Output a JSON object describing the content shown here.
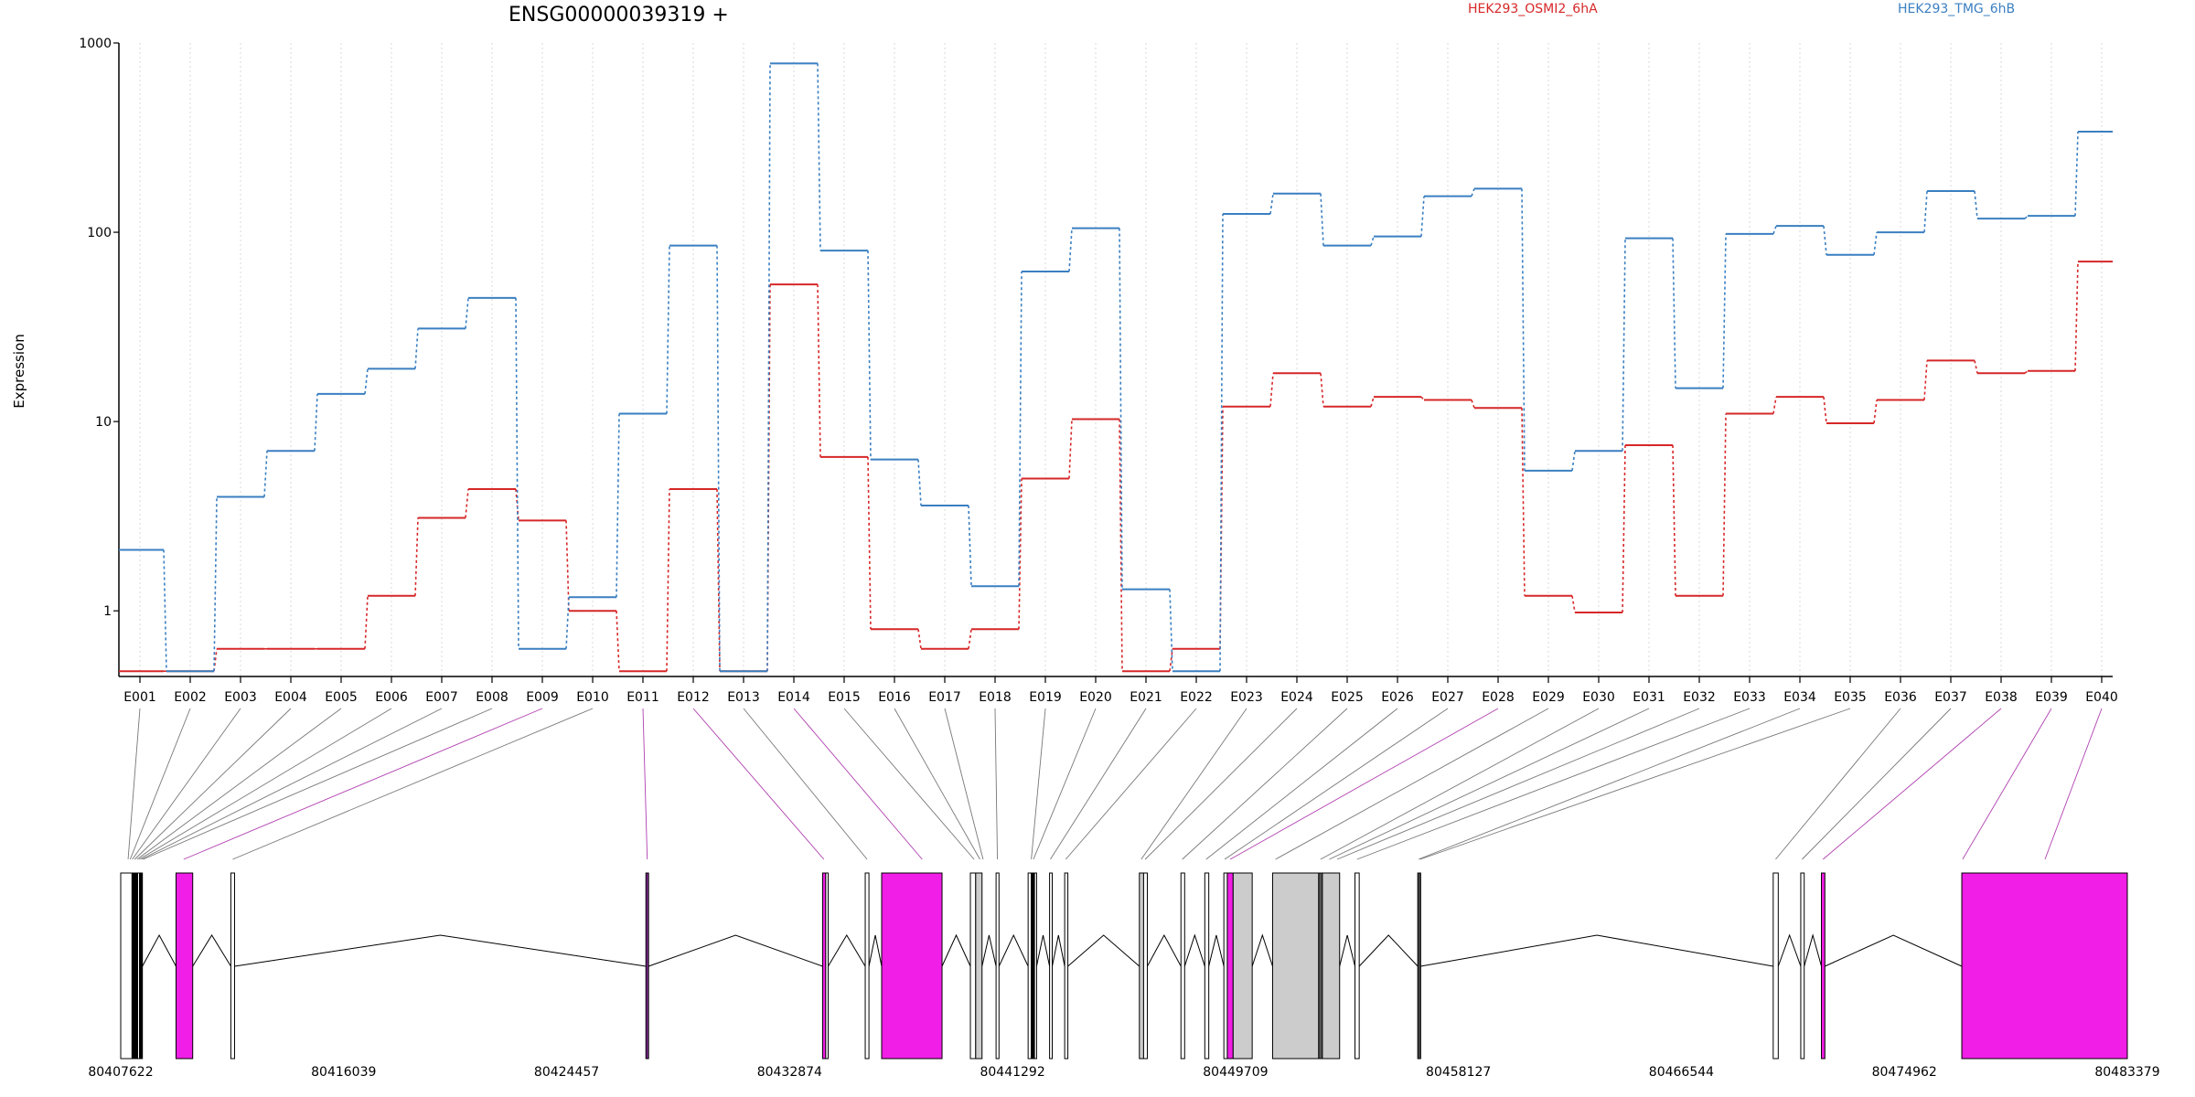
{
  "chart_data": {
    "type": "line",
    "title": "ENSG00000039319 +",
    "xlabel": "",
    "ylabel": "Expression",
    "y_scale": "log",
    "ylim": [
      0.45,
      1000
    ],
    "y_ticks": [
      1,
      10,
      100,
      1000
    ],
    "grid": "vertical dotted",
    "categories": [
      "E001",
      "E002",
      "E003",
      "E004",
      "E005",
      "E006",
      "E007",
      "E008",
      "E009",
      "E010",
      "E011",
      "E012",
      "E013",
      "E014",
      "E015",
      "E016",
      "E017",
      "E018",
      "E019",
      "E020",
      "E021",
      "E022",
      "E023",
      "E024",
      "E025",
      "E026",
      "E027",
      "E028",
      "E029",
      "E030",
      "E031",
      "E032",
      "E033",
      "E034",
      "E035",
      "E036",
      "E037",
      "E038",
      "E039",
      "E040"
    ],
    "series": [
      {
        "name": "HEK293_OSMI2_6hA",
        "color": "#d62728",
        "values": [
          0.48,
          0.48,
          0.63,
          0.63,
          0.63,
          1.2,
          3.1,
          4.4,
          3.0,
          1.0,
          0.48,
          4.4,
          0.48,
          53,
          6.5,
          0.8,
          0.63,
          0.8,
          5.0,
          10.3,
          0.48,
          0.63,
          12,
          18,
          12,
          13.5,
          13,
          11.8,
          1.2,
          0.98,
          7.5,
          1.2,
          11,
          13.5,
          9.8,
          13,
          21,
          18,
          18.5,
          70
        ]
      },
      {
        "name": "HEK293_TMG_6hB",
        "color": "#3a7fc1",
        "values": [
          2.1,
          0.48,
          4.0,
          7.0,
          14,
          19,
          31,
          45,
          0.63,
          1.18,
          11,
          85,
          0.48,
          780,
          80,
          6.3,
          3.6,
          1.35,
          62,
          105,
          1.3,
          0.48,
          125,
          160,
          85,
          95,
          155,
          170,
          5.5,
          7.0,
          93,
          15,
          98,
          108,
          76,
          100,
          165,
          118,
          122,
          340
        ]
      }
    ],
    "genomic_ticks": [
      "80407622",
      "80416039",
      "80424457",
      "80432874",
      "80441292",
      "80449709",
      "80458127",
      "80466544",
      "80474962",
      "80483379"
    ],
    "genomic_range": [
      80407622,
      80483379
    ],
    "exon_positions": [
      {
        "start": 80407622,
        "end": 80408050,
        "color": "#ffffff"
      },
      {
        "start": 80408050,
        "end": 80408260,
        "color": "#000000"
      },
      {
        "start": 80408260,
        "end": 80408330,
        "color": "#ffffff"
      },
      {
        "start": 80408330,
        "end": 80408440,
        "color": "#000000"
      },
      {
        "start": 80409710,
        "end": 80410340,
        "color": "#f01ee6"
      },
      {
        "start": 80411780,
        "end": 80411920,
        "color": "#ffffff"
      },
      {
        "start": 80427450,
        "end": 80427550,
        "color": "#7a2a8a"
      },
      {
        "start": 80434120,
        "end": 80434240,
        "color": "#f01ee6"
      },
      {
        "start": 80434240,
        "end": 80434330,
        "color": "#ffffff"
      },
      {
        "start": 80435730,
        "end": 80435870,
        "color": "#ffffff"
      },
      {
        "start": 80436350,
        "end": 80438630,
        "color": "#f01ee6"
      },
      {
        "start": 80439700,
        "end": 80439900,
        "color": "#ffffff"
      },
      {
        "start": 80439900,
        "end": 80440140,
        "color": "#cccccc"
      },
      {
        "start": 80440670,
        "end": 80440780,
        "color": "#ffffff"
      },
      {
        "start": 80441880,
        "end": 80442000,
        "color": "#ffffff"
      },
      {
        "start": 80442000,
        "end": 80442120,
        "color": "#000000"
      },
      {
        "start": 80442120,
        "end": 80442200,
        "color": "#ffffff"
      },
      {
        "start": 80442690,
        "end": 80442790,
        "color": "#ffffff"
      },
      {
        "start": 80443260,
        "end": 80443380,
        "color": "#ffffff"
      },
      {
        "start": 80446080,
        "end": 80446240,
        "color": "#cccccc"
      },
      {
        "start": 80446240,
        "end": 80446380,
        "color": "#ffffff"
      },
      {
        "start": 80447650,
        "end": 80447790,
        "color": "#ffffff"
      },
      {
        "start": 80448550,
        "end": 80448700,
        "color": "#ffffff"
      },
      {
        "start": 80449270,
        "end": 80449400,
        "color": "#ffffff"
      },
      {
        "start": 80449400,
        "end": 80449620,
        "color": "#f01ee6"
      },
      {
        "start": 80449620,
        "end": 80450340,
        "color": "#cccccc"
      },
      {
        "start": 80451110,
        "end": 80452850,
        "color": "#cccccc"
      },
      {
        "start": 80452850,
        "end": 80452990,
        "color": "#555555"
      },
      {
        "start": 80452990,
        "end": 80453640,
        "color": "#cccccc"
      },
      {
        "start": 80454220,
        "end": 80454380,
        "color": "#ffffff"
      },
      {
        "start": 80456590,
        "end": 80456700,
        "color": "#444444"
      },
      {
        "start": 80470010,
        "end": 80470200,
        "color": "#ffffff"
      },
      {
        "start": 80471050,
        "end": 80471180,
        "color": "#ffffff"
      },
      {
        "start": 80471830,
        "end": 80471960,
        "color": "#f01ee6"
      },
      {
        "start": 80477130,
        "end": 80483379,
        "color": "#f01ee6"
      }
    ],
    "exon_links": [
      {
        "exon": "E001",
        "pos": 80407900,
        "color": "#777777"
      },
      {
        "exon": "E002",
        "pos": 80407980,
        "color": "#777777"
      },
      {
        "exon": "E003",
        "pos": 80408060,
        "color": "#777777"
      },
      {
        "exon": "E004",
        "pos": 80408150,
        "color": "#777777"
      },
      {
        "exon": "E005",
        "pos": 80408240,
        "color": "#777777"
      },
      {
        "exon": "E006",
        "pos": 80408320,
        "color": "#777777"
      },
      {
        "exon": "E007",
        "pos": 80408400,
        "color": "#777777"
      },
      {
        "exon": "E008",
        "pos": 80408470,
        "color": "#777777"
      },
      {
        "exon": "E009",
        "pos": 80410000,
        "color": "#b040b0"
      },
      {
        "exon": "E010",
        "pos": 80411850,
        "color": "#777777"
      },
      {
        "exon": "E011",
        "pos": 80427500,
        "color": "#b040b0"
      },
      {
        "exon": "E012",
        "pos": 80434170,
        "color": "#b040b0"
      },
      {
        "exon": "E013",
        "pos": 80435800,
        "color": "#777777"
      },
      {
        "exon": "E014",
        "pos": 80437880,
        "color": "#b040b0"
      },
      {
        "exon": "E015",
        "pos": 80439840,
        "color": "#777777"
      },
      {
        "exon": "E016",
        "pos": 80440060,
        "color": "#777777"
      },
      {
        "exon": "E017",
        "pos": 80440180,
        "color": "#777777"
      },
      {
        "exon": "E018",
        "pos": 80440720,
        "color": "#777777"
      },
      {
        "exon": "E019",
        "pos": 80442000,
        "color": "#777777"
      },
      {
        "exon": "E020",
        "pos": 80442080,
        "color": "#777777"
      },
      {
        "exon": "E021",
        "pos": 80442720,
        "color": "#777777"
      },
      {
        "exon": "E022",
        "pos": 80443300,
        "color": "#777777"
      },
      {
        "exon": "E023",
        "pos": 80446150,
        "color": "#777777"
      },
      {
        "exon": "E024",
        "pos": 80446300,
        "color": "#777777"
      },
      {
        "exon": "E025",
        "pos": 80447700,
        "color": "#777777"
      },
      {
        "exon": "E026",
        "pos": 80448600,
        "color": "#777777"
      },
      {
        "exon": "E027",
        "pos": 80449300,
        "color": "#777777"
      },
      {
        "exon": "E028",
        "pos": 80449510,
        "color": "#b040b0"
      },
      {
        "exon": "E029",
        "pos": 80451220,
        "color": "#777777"
      },
      {
        "exon": "E030",
        "pos": 80452920,
        "color": "#777777"
      },
      {
        "exon": "E031",
        "pos": 80453250,
        "color": "#777777"
      },
      {
        "exon": "E032",
        "pos": 80453550,
        "color": "#777777"
      },
      {
        "exon": "E033",
        "pos": 80454300,
        "color": "#777777"
      },
      {
        "exon": "E034",
        "pos": 80456620,
        "color": "#777777"
      },
      {
        "exon": "E035",
        "pos": 80456680,
        "color": "#777777"
      },
      {
        "exon": "E036",
        "pos": 80470100,
        "color": "#777777"
      },
      {
        "exon": "E037",
        "pos": 80471100,
        "color": "#777777"
      },
      {
        "exon": "E038",
        "pos": 80471890,
        "color": "#b040b0"
      },
      {
        "exon": "E039",
        "pos": 80477160,
        "color": "#b040b0"
      },
      {
        "exon": "E040",
        "pos": 80480270,
        "color": "#b040b0"
      }
    ]
  }
}
